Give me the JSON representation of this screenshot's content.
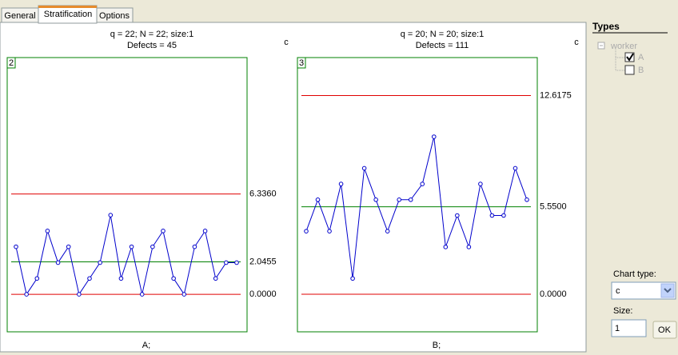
{
  "tabs": [
    "General",
    "Stratification",
    "Options"
  ],
  "chart_data": [
    {
      "type": "line",
      "title": "q = 22; N = 22; size:1",
      "subtitle": "Defects = 45",
      "axis_label": "c",
      "panel_label": "2",
      "x_label": "A;",
      "values": [
        3,
        0,
        1,
        4,
        2,
        3,
        0,
        1,
        2,
        5,
        1,
        3,
        0,
        3,
        4,
        1,
        0,
        3,
        4,
        1,
        2,
        2
      ],
      "color": "#0000cc",
      "ylim": [
        -2.37,
        14.95
      ],
      "yticks": [
        {
          "value": 6.336,
          "label": "6.3360"
        },
        {
          "value": 2.0455,
          "label": "2.0455"
        },
        {
          "value": 0,
          "label": "0.0000"
        }
      ],
      "ytick_line_colors": [
        "#e00000",
        "#008000",
        "#e00000"
      ]
    },
    {
      "type": "line",
      "title": "q = 20; N = 20; size:1",
      "subtitle": "Defects = 111",
      "axis_label": "c",
      "panel_label": "3",
      "x_label": "B;",
      "values": [
        4,
        6,
        4,
        7,
        1,
        8,
        6,
        4,
        6,
        6,
        7,
        10,
        3,
        5,
        3,
        7,
        5,
        5,
        8,
        6
      ],
      "color": "#0000cc",
      "ylim": [
        -2.39,
        15.03
      ],
      "yticks": [
        {
          "value": 12.6175,
          "label": "12.6175"
        },
        {
          "value": 5.55,
          "label": "5.5500"
        },
        {
          "value": 0,
          "label": "0.0000"
        }
      ],
      "ytick_line_colors": [
        "#e00000",
        "#008000",
        "#e00000"
      ]
    }
  ],
  "side_panel": {
    "title": "Types",
    "tree_root": "worker",
    "tree_items": [
      "A",
      "B"
    ],
    "chart_type_label": "Chart type:",
    "chart_type_value": "c",
    "size_label": "Size:",
    "size_value": "1",
    "ok_button": "OK"
  }
}
